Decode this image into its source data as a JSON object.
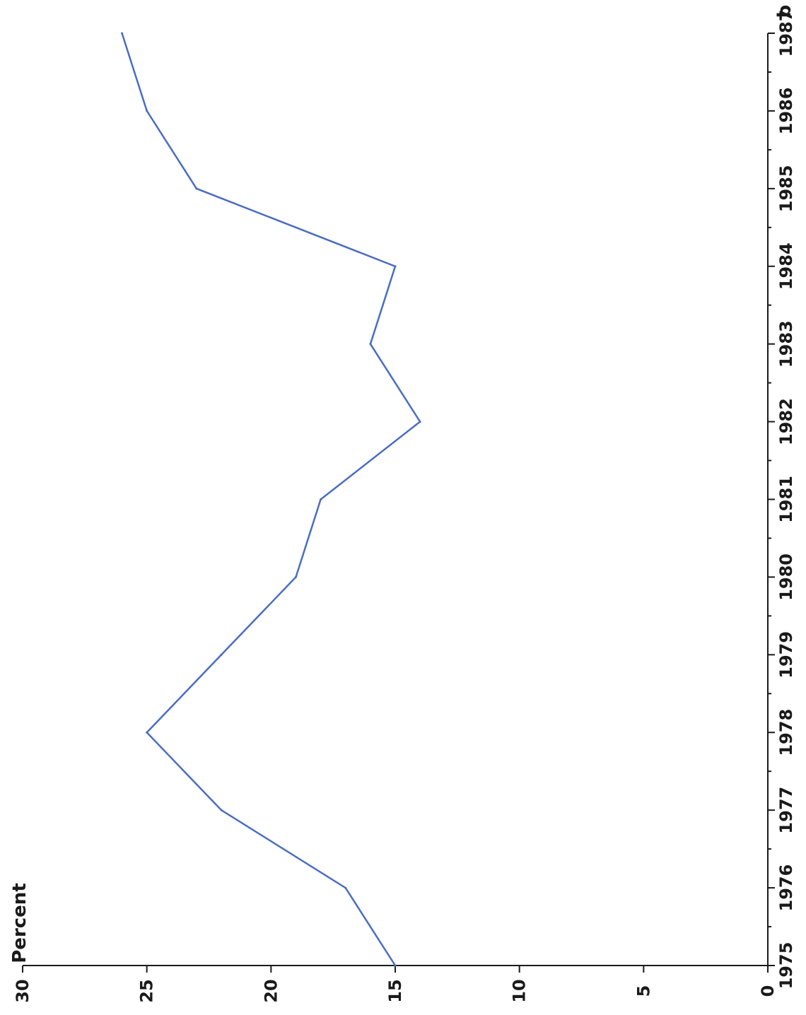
{
  "chart_data": {
    "type": "line",
    "orientation": "rotated-90-clockwise",
    "panel_label": "b",
    "ylabel": "Percent",
    "xlabel": "",
    "x": [
      1975,
      1976,
      1977,
      1978,
      1979,
      1980,
      1981,
      1982,
      1983,
      1984,
      1985,
      1986,
      1987
    ],
    "x_tick_labels": [
      "1975",
      "1976",
      "1977",
      "1978",
      "1979",
      "1980",
      "1981",
      "1982",
      "1983",
      "1984",
      "1985",
      "1986",
      "1987"
    ],
    "y_ticks": [
      0,
      5,
      10,
      15,
      20,
      25,
      30
    ],
    "y_tick_labels": [
      "0",
      "5",
      "10",
      "15",
      "20",
      "25",
      "30"
    ],
    "xlim": [
      1975,
      1987
    ],
    "ylim": [
      0,
      30
    ],
    "grid": false,
    "series": [
      {
        "color": "#4a6cc4",
        "values": [
          15,
          17,
          22,
          25,
          22,
          19,
          18,
          14,
          16,
          15,
          23,
          25,
          26
        ]
      }
    ]
  }
}
